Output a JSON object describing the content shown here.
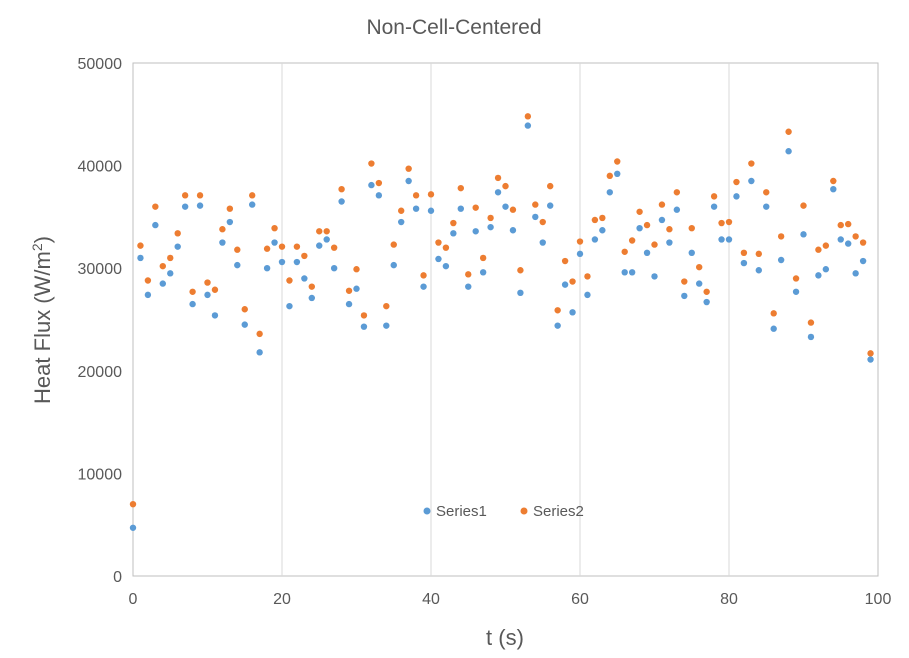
{
  "chart_data": {
    "type": "scatter",
    "title": "Non-Cell-Centered",
    "xlabel": "t (s)",
    "ylabel_main": "Heat Flux (W/m",
    "ylabel_sup": "2",
    "ylabel_close": ")",
    "xlim": [
      0,
      100
    ],
    "ylim": [
      0,
      50000
    ],
    "xticks": [
      0,
      20,
      40,
      60,
      80,
      100
    ],
    "yticks": [
      0,
      10000,
      20000,
      30000,
      40000,
      50000
    ],
    "xtick_labels": [
      "0",
      "20",
      "40",
      "60",
      "80",
      "100"
    ],
    "ytick_labels": [
      "0",
      "10000",
      "20000",
      "30000",
      "40000",
      "50000"
    ],
    "grid": "vertical",
    "legend_placement": "bottom-center inside plot",
    "series": [
      {
        "name": "Series1",
        "color": "#5b9bd5",
        "points": [
          [
            0,
            4700
          ],
          [
            1,
            31000
          ],
          [
            2,
            27400
          ],
          [
            3,
            34200
          ],
          [
            4,
            28500
          ],
          [
            5,
            29500
          ],
          [
            6,
            32100
          ],
          [
            7,
            36000
          ],
          [
            8,
            26500
          ],
          [
            9,
            36100
          ],
          [
            10,
            27400
          ],
          [
            11,
            25400
          ],
          [
            12,
            32500
          ],
          [
            13,
            34500
          ],
          [
            14,
            30300
          ],
          [
            15,
            24500
          ],
          [
            16,
            36200
          ],
          [
            17,
            21800
          ],
          [
            18,
            30000
          ],
          [
            19,
            32500
          ],
          [
            20,
            30600
          ],
          [
            21,
            26300
          ],
          [
            22,
            30600
          ],
          [
            23,
            29000
          ],
          [
            24,
            27100
          ],
          [
            25,
            32200
          ],
          [
            26,
            32800
          ],
          [
            27,
            30000
          ],
          [
            28,
            36500
          ],
          [
            29,
            26500
          ],
          [
            30,
            28000
          ],
          [
            31,
            24300
          ],
          [
            32,
            38100
          ],
          [
            33,
            37100
          ],
          [
            34,
            24400
          ],
          [
            35,
            30300
          ],
          [
            36,
            34500
          ],
          [
            37,
            38500
          ],
          [
            38,
            35800
          ],
          [
            39,
            28200
          ],
          [
            40,
            35600
          ],
          [
            41,
            30900
          ],
          [
            42,
            30200
          ],
          [
            43,
            33400
          ],
          [
            44,
            35800
          ],
          [
            45,
            28200
          ],
          [
            46,
            33600
          ],
          [
            47,
            29600
          ],
          [
            48,
            34000
          ],
          [
            49,
            37400
          ],
          [
            50,
            36000
          ],
          [
            51,
            33700
          ],
          [
            52,
            27600
          ],
          [
            53,
            43900
          ],
          [
            54,
            35000
          ],
          [
            55,
            32500
          ],
          [
            56,
            36100
          ],
          [
            57,
            24400
          ],
          [
            58,
            28400
          ],
          [
            59,
            25700
          ],
          [
            60,
            31400
          ],
          [
            61,
            27400
          ],
          [
            62,
            32800
          ],
          [
            63,
            33700
          ],
          [
            64,
            37400
          ],
          [
            65,
            39200
          ],
          [
            66,
            29600
          ],
          [
            67,
            29600
          ],
          [
            68,
            33900
          ],
          [
            69,
            31500
          ],
          [
            70,
            29200
          ],
          [
            71,
            34700
          ],
          [
            72,
            32500
          ],
          [
            73,
            35700
          ],
          [
            74,
            27300
          ],
          [
            75,
            31500
          ],
          [
            76,
            28500
          ],
          [
            77,
            26700
          ],
          [
            78,
            36000
          ],
          [
            79,
            32800
          ],
          [
            80,
            32800
          ],
          [
            81,
            37000
          ],
          [
            82,
            30500
          ],
          [
            83,
            38500
          ],
          [
            84,
            29800
          ],
          [
            85,
            36000
          ],
          [
            86,
            24100
          ],
          [
            87,
            30800
          ],
          [
            88,
            41400
          ],
          [
            89,
            27700
          ],
          [
            90,
            33300
          ],
          [
            91,
            23300
          ],
          [
            92,
            29300
          ],
          [
            93,
            29900
          ],
          [
            94,
            37700
          ],
          [
            95,
            32800
          ],
          [
            96,
            32400
          ],
          [
            97,
            29500
          ],
          [
            98,
            30700
          ],
          [
            99,
            21100
          ]
        ]
      },
      {
        "name": "Series2",
        "color": "#ed7d31",
        "points": [
          [
            0,
            7000
          ],
          [
            1,
            32200
          ],
          [
            2,
            28800
          ],
          [
            3,
            36000
          ],
          [
            4,
            30200
          ],
          [
            5,
            31000
          ],
          [
            6,
            33400
          ],
          [
            7,
            37100
          ],
          [
            8,
            27700
          ],
          [
            9,
            37100
          ],
          [
            10,
            28600
          ],
          [
            11,
            27900
          ],
          [
            12,
            33800
          ],
          [
            13,
            35800
          ],
          [
            14,
            31800
          ],
          [
            15,
            26000
          ],
          [
            16,
            37100
          ],
          [
            17,
            23600
          ],
          [
            18,
            31900
          ],
          [
            19,
            33900
          ],
          [
            20,
            32100
          ],
          [
            21,
            28800
          ],
          [
            22,
            32100
          ],
          [
            23,
            31200
          ],
          [
            24,
            28200
          ],
          [
            25,
            33600
          ],
          [
            26,
            33600
          ],
          [
            27,
            32000
          ],
          [
            28,
            37700
          ],
          [
            29,
            27800
          ],
          [
            30,
            29900
          ],
          [
            31,
            25400
          ],
          [
            32,
            40200
          ],
          [
            33,
            38300
          ],
          [
            34,
            26300
          ],
          [
            35,
            32300
          ],
          [
            36,
            35600
          ],
          [
            37,
            39700
          ],
          [
            38,
            37100
          ],
          [
            39,
            29300
          ],
          [
            40,
            37200
          ],
          [
            41,
            32500
          ],
          [
            42,
            32000
          ],
          [
            43,
            34400
          ],
          [
            44,
            37800
          ],
          [
            45,
            29400
          ],
          [
            46,
            35900
          ],
          [
            47,
            31000
          ],
          [
            48,
            34900
          ],
          [
            49,
            38800
          ],
          [
            50,
            38000
          ],
          [
            51,
            35700
          ],
          [
            52,
            29800
          ],
          [
            53,
            44800
          ],
          [
            54,
            36200
          ],
          [
            55,
            34500
          ],
          [
            56,
            38000
          ],
          [
            57,
            25900
          ],
          [
            58,
            30700
          ],
          [
            59,
            28700
          ],
          [
            60,
            32600
          ],
          [
            61,
            29200
          ],
          [
            62,
            34700
          ],
          [
            63,
            34900
          ],
          [
            64,
            39000
          ],
          [
            65,
            40400
          ],
          [
            66,
            31600
          ],
          [
            67,
            32700
          ],
          [
            68,
            35500
          ],
          [
            69,
            34200
          ],
          [
            70,
            32300
          ],
          [
            71,
            36200
          ],
          [
            72,
            33800
          ],
          [
            73,
            37400
          ],
          [
            74,
            28700
          ],
          [
            75,
            33900
          ],
          [
            76,
            30100
          ],
          [
            77,
            27700
          ],
          [
            78,
            37000
          ],
          [
            79,
            34400
          ],
          [
            80,
            34500
          ],
          [
            81,
            38400
          ],
          [
            82,
            31500
          ],
          [
            83,
            40200
          ],
          [
            84,
            31400
          ],
          [
            85,
            37400
          ],
          [
            86,
            25600
          ],
          [
            87,
            33100
          ],
          [
            88,
            43300
          ],
          [
            89,
            29000
          ],
          [
            90,
            36100
          ],
          [
            91,
            24700
          ],
          [
            92,
            31800
          ],
          [
            93,
            32200
          ],
          [
            94,
            38500
          ],
          [
            95,
            34200
          ],
          [
            96,
            34300
          ],
          [
            97,
            33100
          ],
          [
            98,
            32500
          ],
          [
            99,
            21700
          ]
        ]
      }
    ]
  }
}
